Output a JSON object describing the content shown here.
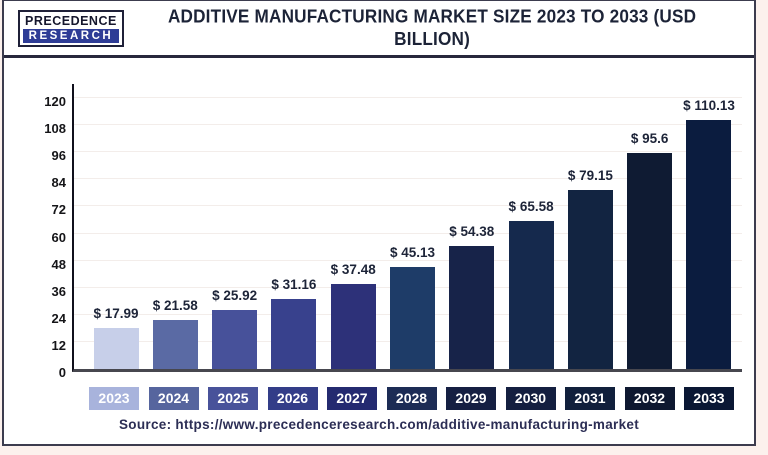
{
  "logo": {
    "line1": "PRECEDENCE",
    "line2": "RESEARCH"
  },
  "title": "ADDITIVE MANUFACTURING MARKET SIZE 2023 TO 2033 (USD BILLION)",
  "source": "Source: https://www.precedenceresearch.com/additive-manufacturing-market",
  "colors": {
    "background": "#fcf1ed",
    "card": "#ffffff",
    "card_border": "#3c3c4e",
    "title_text": "#1c2337",
    "grid": "#f3edea",
    "value_label": "#1d2438",
    "tick_label": "#151518",
    "source_text": "#2c2e55",
    "logo_navy": "#2e3c96"
  },
  "chart_data": {
    "type": "bar",
    "title": "Additive Manufacturing Market Size 2023 to 2033 (USD Billion)",
    "xlabel": "",
    "ylabel": "",
    "categories": [
      "2023",
      "2024",
      "2025",
      "2026",
      "2027",
      "2028",
      "2029",
      "2030",
      "2031",
      "2032",
      "2033"
    ],
    "values": [
      17.99,
      21.58,
      25.92,
      31.16,
      37.48,
      45.13,
      54.38,
      65.58,
      79.15,
      95.6,
      110.13
    ],
    "value_labels": [
      "$ 17.99",
      "$ 21.58",
      "$ 25.92",
      "$ 31.16",
      "$ 37.48",
      "$ 45.13",
      "$ 54.38",
      "$ 65.58",
      "$ 79.15",
      "$ 95.6",
      "$ 110.13"
    ],
    "bar_colors": [
      "#c7cfe9",
      "#5a6aa4",
      "#47519a",
      "#38418d",
      "#2d3179",
      "#1e3c68",
      "#172349",
      "#15294d",
      "#122441",
      "#0f1b33",
      "#0b1c3f"
    ],
    "label_box_colors": [
      "#a8b3dc",
      "#56659e",
      "#48529a",
      "#333d88",
      "#242a70",
      "#1c2c55",
      "#151f42",
      "#141f40",
      "#11203c",
      "#0e1830",
      "#0a1734"
    ],
    "ylim": [
      0,
      120
    ],
    "yticks": [
      0,
      12,
      24,
      36,
      48,
      60,
      72,
      84,
      96,
      108,
      120
    ],
    "grid": true,
    "legend": false
  }
}
